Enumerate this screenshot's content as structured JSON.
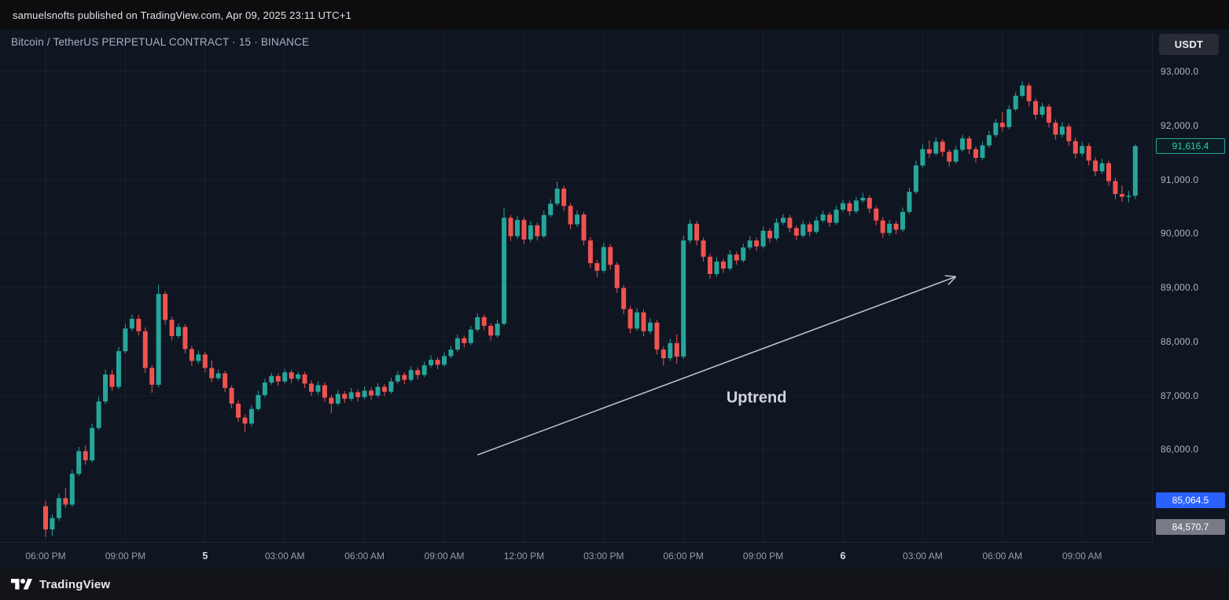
{
  "top_bar": {
    "published_line": "samuelsnofts published on TradingView.com, Apr 09, 2025 23:11 UTC+1"
  },
  "chart_header": {
    "symbol_title": "Bitcoin / TetherUS PERPETUAL CONTRACT · 15 · BINANCE",
    "currency_label": "USDT"
  },
  "price_scale": {
    "ticks": [
      {
        "label": "93,000.0",
        "value": 93000
      },
      {
        "label": "92,000.0",
        "value": 92000
      },
      {
        "label": "91,000.0",
        "value": 91000
      },
      {
        "label": "90,000.0",
        "value": 90000
      },
      {
        "label": "89,000.0",
        "value": 89000
      },
      {
        "label": "88,000.0",
        "value": 88000
      },
      {
        "label": "87,000.0",
        "value": 87000
      },
      {
        "label": "86,000.0",
        "value": 86000
      }
    ],
    "badges": [
      {
        "label": "91,616.4",
        "value": 91616.4,
        "style": "last-price-teal"
      },
      {
        "label": "85,064.5",
        "value": 85064.5,
        "style": "blue"
      },
      {
        "label": "84,570.7",
        "value": 84570.7,
        "style": "gray"
      }
    ]
  },
  "time_scale": {
    "labels": [
      {
        "text": "06:00 PM",
        "index": 0,
        "emphasis": false
      },
      {
        "text": "09:00 PM",
        "index": 12,
        "emphasis": false
      },
      {
        "text": "5",
        "index": 24,
        "emphasis": true
      },
      {
        "text": "03:00 AM",
        "index": 36,
        "emphasis": false
      },
      {
        "text": "06:00 AM",
        "index": 48,
        "emphasis": false
      },
      {
        "text": "09:00 AM",
        "index": 60,
        "emphasis": false
      },
      {
        "text": "12:00 PM",
        "index": 72,
        "emphasis": false
      },
      {
        "text": "03:00 PM",
        "index": 84,
        "emphasis": false
      },
      {
        "text": "06:00 PM",
        "index": 96,
        "emphasis": false
      },
      {
        "text": "09:00 PM",
        "index": 108,
        "emphasis": false
      },
      {
        "text": "6",
        "index": 120,
        "emphasis": true
      },
      {
        "text": "03:00 AM",
        "index": 132,
        "emphasis": false
      },
      {
        "text": "06:00 AM",
        "index": 144,
        "emphasis": false
      },
      {
        "text": "09:00 AM",
        "index": 156,
        "emphasis": false
      }
    ]
  },
  "footer": {
    "brand": "TradingView"
  },
  "chart_data": {
    "type": "candlestick",
    "title": "Bitcoin / TetherUS PERPETUAL CONTRACT · 15 · BINANCE",
    "symbol": "Bitcoin / TetherUS PERPETUAL CONTRACT",
    "interval": "15",
    "exchange": "BINANCE",
    "quote_currency": "USDT",
    "last_price": 91616.4,
    "ylim": [
      84290,
      93770
    ],
    "y_grid": [
      93000,
      92000,
      91000,
      90000,
      89000,
      88000,
      87000,
      86000,
      85000
    ],
    "grid": true,
    "legend_position": "none",
    "colors": {
      "up": "#26a69a",
      "down": "#ef5350",
      "grid": "rgba(240,243,250,0.05)",
      "arrow": "#b9bec7",
      "annotation_text": "#d1d5de"
    },
    "annotation": {
      "label": "Uptrend",
      "arrow_from": [
        65,
        85900
      ],
      "arrow_to": [
        137,
        89200
      ],
      "label_at": [
        107,
        86970
      ]
    },
    "candles_ohlc": [
      [
        84950,
        85050,
        84380,
        84520
      ],
      [
        84520,
        84800,
        84400,
        84730
      ],
      [
        84730,
        85180,
        84680,
        85100
      ],
      [
        85100,
        85280,
        84920,
        84980
      ],
      [
        84980,
        85620,
        84940,
        85550
      ],
      [
        85550,
        86050,
        85510,
        85970
      ],
      [
        85970,
        86080,
        85720,
        85800
      ],
      [
        85800,
        86480,
        85760,
        86400
      ],
      [
        86400,
        86980,
        86360,
        86890
      ],
      [
        86890,
        87480,
        86840,
        87390
      ],
      [
        87390,
        87480,
        87090,
        87160
      ],
      [
        87160,
        87900,
        87120,
        87820
      ],
      [
        87820,
        88330,
        87780,
        88240
      ],
      [
        88240,
        88500,
        88190,
        88420
      ],
      [
        88420,
        88490,
        88110,
        88190
      ],
      [
        88190,
        88260,
        87420,
        87510
      ],
      [
        87510,
        87560,
        87050,
        87200
      ],
      [
        87200,
        89050,
        87150,
        88880
      ],
      [
        88880,
        88930,
        88310,
        88400
      ],
      [
        88400,
        88460,
        88020,
        88100
      ],
      [
        88100,
        88340,
        88060,
        88270
      ],
      [
        88270,
        88320,
        87780,
        87860
      ],
      [
        87860,
        87920,
        87550,
        87640
      ],
      [
        87640,
        87830,
        87590,
        87760
      ],
      [
        87760,
        87810,
        87430,
        87510
      ],
      [
        87510,
        87650,
        87250,
        87320
      ],
      [
        87320,
        87480,
        87280,
        87410
      ],
      [
        87410,
        87460,
        87060,
        87140
      ],
      [
        87140,
        87190,
        86760,
        86850
      ],
      [
        86850,
        86910,
        86510,
        86590
      ],
      [
        86590,
        86650,
        86330,
        86480
      ],
      [
        86480,
        86820,
        86430,
        86750
      ],
      [
        86750,
        87090,
        86710,
        87010
      ],
      [
        87010,
        87310,
        86970,
        87240
      ],
      [
        87240,
        87420,
        87200,
        87360
      ],
      [
        87360,
        87410,
        87180,
        87260
      ],
      [
        87260,
        87490,
        87220,
        87430
      ],
      [
        87430,
        87480,
        87230,
        87310
      ],
      [
        87310,
        87440,
        87270,
        87390
      ],
      [
        87390,
        87440,
        87140,
        87220
      ],
      [
        87220,
        87280,
        86990,
        87070
      ],
      [
        87070,
        87260,
        87020,
        87190
      ],
      [
        87190,
        87240,
        86880,
        86960
      ],
      [
        86960,
        87010,
        86670,
        86850
      ],
      [
        86850,
        87100,
        86810,
        87030
      ],
      [
        87030,
        87080,
        86860,
        86940
      ],
      [
        86940,
        87140,
        86900,
        87060
      ],
      [
        87060,
        87110,
        86890,
        86970
      ],
      [
        86970,
        87170,
        86930,
        87090
      ],
      [
        87090,
        87150,
        86920,
        87000
      ],
      [
        87000,
        87230,
        86960,
        87160
      ],
      [
        87160,
        87210,
        86990,
        87070
      ],
      [
        87070,
        87330,
        87030,
        87260
      ],
      [
        87260,
        87450,
        87220,
        87380
      ],
      [
        87380,
        87430,
        87210,
        87290
      ],
      [
        87290,
        87540,
        87250,
        87470
      ],
      [
        87470,
        87520,
        87300,
        87380
      ],
      [
        87380,
        87630,
        87340,
        87560
      ],
      [
        87560,
        87740,
        87520,
        87660
      ],
      [
        87660,
        87710,
        87490,
        87570
      ],
      [
        87570,
        87800,
        87530,
        87730
      ],
      [
        87730,
        87920,
        87690,
        87850
      ],
      [
        87850,
        88130,
        87810,
        88060
      ],
      [
        88060,
        88110,
        87890,
        87970
      ],
      [
        87970,
        88290,
        87930,
        88220
      ],
      [
        88220,
        88520,
        88180,
        88450
      ],
      [
        88450,
        88500,
        88210,
        88290
      ],
      [
        88290,
        88340,
        88020,
        88110
      ],
      [
        88110,
        88400,
        88070,
        88330
      ],
      [
        88330,
        90480,
        88290,
        90290
      ],
      [
        90290,
        90340,
        89860,
        89950
      ],
      [
        89950,
        90330,
        89900,
        90250
      ],
      [
        90250,
        90300,
        89800,
        89890
      ],
      [
        89890,
        90230,
        89840,
        90150
      ],
      [
        90150,
        90200,
        89870,
        89950
      ],
      [
        89950,
        90420,
        89910,
        90340
      ],
      [
        90340,
        90630,
        90300,
        90550
      ],
      [
        90550,
        90960,
        90510,
        90830
      ],
      [
        90830,
        90880,
        90420,
        90510
      ],
      [
        90510,
        90560,
        90080,
        90170
      ],
      [
        90170,
        90430,
        90120,
        90350
      ],
      [
        90350,
        90400,
        89780,
        89870
      ],
      [
        89870,
        89930,
        89360,
        89450
      ],
      [
        89450,
        89510,
        89190,
        89310
      ],
      [
        89310,
        89830,
        89270,
        89750
      ],
      [
        89750,
        89800,
        89330,
        89420
      ],
      [
        89420,
        89470,
        88900,
        88990
      ],
      [
        88990,
        89050,
        88510,
        88600
      ],
      [
        88600,
        88660,
        88150,
        88240
      ],
      [
        88240,
        88620,
        88200,
        88540
      ],
      [
        88540,
        88590,
        88100,
        88190
      ],
      [
        88190,
        88430,
        88140,
        88350
      ],
      [
        88350,
        88400,
        87760,
        87850
      ],
      [
        87850,
        87910,
        87550,
        87690
      ],
      [
        87690,
        88050,
        87640,
        87970
      ],
      [
        87970,
        88130,
        87590,
        87720
      ],
      [
        87720,
        89960,
        87680,
        89870
      ],
      [
        89870,
        90260,
        89820,
        90180
      ],
      [
        90180,
        90230,
        89780,
        89870
      ],
      [
        89870,
        89920,
        89480,
        89570
      ],
      [
        89570,
        89630,
        89160,
        89250
      ],
      [
        89250,
        89560,
        89200,
        89480
      ],
      [
        89480,
        89530,
        89270,
        89350
      ],
      [
        89350,
        89690,
        89310,
        89610
      ],
      [
        89610,
        89660,
        89420,
        89500
      ],
      [
        89500,
        89810,
        89460,
        89740
      ],
      [
        89740,
        89950,
        89700,
        89870
      ],
      [
        89870,
        89920,
        89680,
        89760
      ],
      [
        89760,
        90130,
        89720,
        90050
      ],
      [
        90050,
        90100,
        89830,
        89910
      ],
      [
        89910,
        90280,
        89870,
        90200
      ],
      [
        90200,
        90360,
        90160,
        90290
      ],
      [
        90290,
        90340,
        90020,
        90100
      ],
      [
        90100,
        90150,
        89880,
        89960
      ],
      [
        89960,
        90240,
        89920,
        90170
      ],
      [
        90170,
        90220,
        89950,
        90030
      ],
      [
        90030,
        90310,
        89990,
        90240
      ],
      [
        90240,
        90420,
        90200,
        90350
      ],
      [
        90350,
        90400,
        90120,
        90200
      ],
      [
        90200,
        90510,
        90160,
        90440
      ],
      [
        90440,
        90630,
        90400,
        90560
      ],
      [
        90560,
        90610,
        90330,
        90410
      ],
      [
        90410,
        90680,
        90370,
        90610
      ],
      [
        90610,
        90750,
        90570,
        90660
      ],
      [
        90660,
        90710,
        90380,
        90460
      ],
      [
        90460,
        90510,
        90150,
        90240
      ],
      [
        90240,
        90300,
        89920,
        90010
      ],
      [
        90010,
        90250,
        89960,
        90180
      ],
      [
        90180,
        90230,
        89990,
        90070
      ],
      [
        90070,
        90480,
        90030,
        90400
      ],
      [
        90400,
        90850,
        90360,
        90770
      ],
      [
        90770,
        91350,
        90730,
        91260
      ],
      [
        91260,
        91650,
        91220,
        91560
      ],
      [
        91560,
        91720,
        91400,
        91480
      ],
      [
        91480,
        91780,
        91440,
        91700
      ],
      [
        91700,
        91750,
        91420,
        91510
      ],
      [
        91510,
        91560,
        91230,
        91330
      ],
      [
        91330,
        91620,
        91290,
        91550
      ],
      [
        91550,
        91830,
        91510,
        91760
      ],
      [
        91760,
        91810,
        91470,
        91560
      ],
      [
        91560,
        91610,
        91310,
        91400
      ],
      [
        91400,
        91700,
        91360,
        91630
      ],
      [
        91630,
        91900,
        91590,
        91820
      ],
      [
        91820,
        92120,
        91780,
        92050
      ],
      [
        92050,
        92250,
        91890,
        91970
      ],
      [
        91970,
        92370,
        91930,
        92300
      ],
      [
        92300,
        92620,
        92260,
        92550
      ],
      [
        92550,
        92820,
        92510,
        92740
      ],
      [
        92740,
        92790,
        92350,
        92450
      ],
      [
        92450,
        92500,
        92110,
        92200
      ],
      [
        92200,
        92420,
        92150,
        92350
      ],
      [
        92350,
        92400,
        91960,
        92050
      ],
      [
        92050,
        92110,
        91740,
        91830
      ],
      [
        91830,
        92060,
        91780,
        91980
      ],
      [
        91980,
        92030,
        91620,
        91710
      ],
      [
        91710,
        91770,
        91390,
        91480
      ],
      [
        91480,
        91700,
        91430,
        91620
      ],
      [
        91620,
        91670,
        91260,
        91350
      ],
      [
        91350,
        91410,
        91060,
        91150
      ],
      [
        91150,
        91380,
        91100,
        91300
      ],
      [
        91300,
        91350,
        90880,
        90970
      ],
      [
        90970,
        91030,
        90640,
        90730
      ],
      [
        90730,
        90890,
        90590,
        90680
      ],
      [
        90680,
        90790,
        90570,
        90700
      ],
      [
        90700,
        91650,
        90640,
        91616.4
      ]
    ]
  }
}
